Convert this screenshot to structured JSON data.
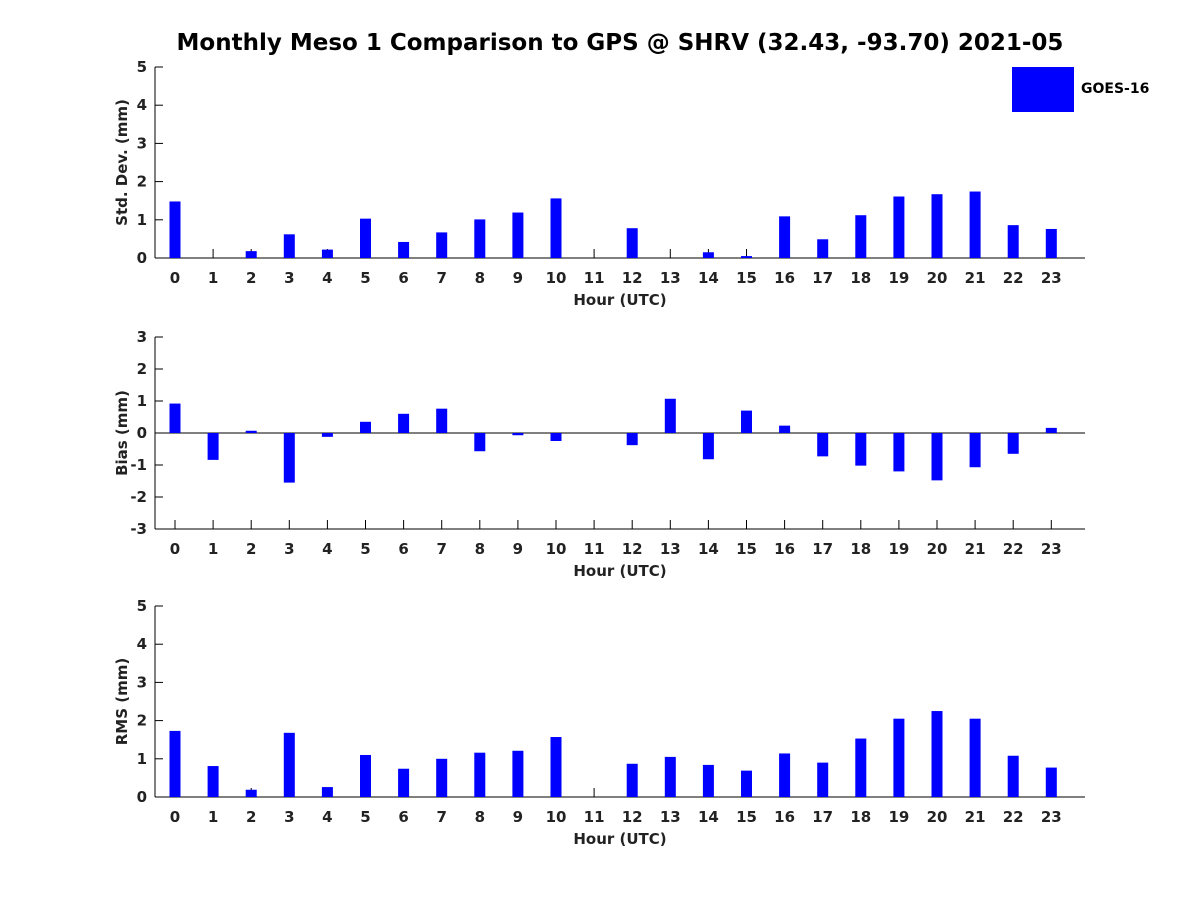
{
  "title": "Monthly Meso 1 Comparison to GPS @ SHRV (32.43, -93.70) 2021-05",
  "legend": {
    "label": "GOES-16",
    "color": "#0000ff"
  },
  "chart_data": [
    {
      "type": "bar",
      "ylabel": "Std. Dev. (mm)",
      "xlabel": "Hour (UTC)",
      "categories": [
        "0",
        "1",
        "2",
        "3",
        "4",
        "5",
        "6",
        "7",
        "8",
        "9",
        "10",
        "11",
        "12",
        "13",
        "14",
        "15",
        "16",
        "17",
        "18",
        "19",
        "20",
        "21",
        "22",
        "23"
      ],
      "yticks": [
        0,
        1,
        2,
        3,
        4,
        5
      ],
      "ylim": [
        0,
        5
      ],
      "series": [
        {
          "name": "GOES-16",
          "values": [
            1.48,
            null,
            0.18,
            0.62,
            0.22,
            1.03,
            0.42,
            0.67,
            1.01,
            1.19,
            1.56,
            null,
            0.78,
            null,
            0.15,
            0.05,
            1.09,
            0.49,
            1.12,
            1.61,
            1.67,
            1.74,
            0.86,
            0.76
          ]
        }
      ]
    },
    {
      "type": "bar",
      "ylabel": "Bias (mm)",
      "xlabel": "Hour (UTC)",
      "categories": [
        "0",
        "1",
        "2",
        "3",
        "4",
        "5",
        "6",
        "7",
        "8",
        "9",
        "10",
        "11",
        "12",
        "13",
        "14",
        "15",
        "16",
        "17",
        "18",
        "19",
        "20",
        "21",
        "22",
        "23"
      ],
      "yticks": [
        -3,
        -2,
        -1,
        0,
        1,
        2,
        3
      ],
      "ylim": [
        -3,
        3
      ],
      "series": [
        {
          "name": "GOES-16",
          "values": [
            0.92,
            -0.84,
            0.07,
            -1.55,
            -0.12,
            0.35,
            0.6,
            0.76,
            -0.57,
            -0.07,
            -0.25,
            null,
            -0.38,
            1.07,
            -0.82,
            0.7,
            0.23,
            -0.73,
            -1.02,
            -1.2,
            -1.48,
            -1.07,
            -0.65,
            0.16
          ]
        }
      ]
    },
    {
      "type": "bar",
      "ylabel": "RMS (mm)",
      "xlabel": "Hour (UTC)",
      "categories": [
        "0",
        "1",
        "2",
        "3",
        "4",
        "5",
        "6",
        "7",
        "8",
        "9",
        "10",
        "11",
        "12",
        "13",
        "14",
        "15",
        "16",
        "17",
        "18",
        "19",
        "20",
        "21",
        "22",
        "23"
      ],
      "yticks": [
        0,
        1,
        2,
        3,
        4,
        5
      ],
      "ylim": [
        0,
        5
      ],
      "series": [
        {
          "name": "GOES-16",
          "values": [
            1.73,
            0.81,
            0.19,
            1.68,
            0.26,
            1.1,
            0.74,
            1.0,
            1.16,
            1.21,
            1.57,
            null,
            0.87,
            1.05,
            0.84,
            0.69,
            1.14,
            0.9,
            1.53,
            2.05,
            2.25,
            2.05,
            1.08,
            0.77
          ]
        }
      ]
    }
  ]
}
